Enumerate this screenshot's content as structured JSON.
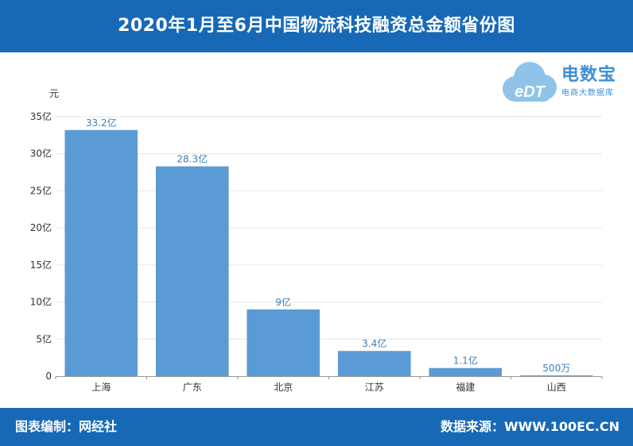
{
  "header": {
    "title": "2020年1月至6月中国物流科技融资总金额省份图"
  },
  "footer": {
    "left": "图表编制：网经社",
    "right": "数据来源：WWW.100EC.CN"
  },
  "logo": {
    "name": "电数宝",
    "subtitle": "电商大数据库",
    "badge": "eDT"
  },
  "colors": {
    "header_bg": "#1769b6",
    "bar": "#5b9bd5",
    "data_label": "#3e7fb8"
  },
  "chart_data": {
    "type": "bar",
    "unit_label": "元",
    "categories": [
      "上海",
      "广东",
      "北京",
      "江苏",
      "福建",
      "山西"
    ],
    "values": [
      3320000000,
      2830000000,
      900000000,
      340000000,
      110000000,
      5000000
    ],
    "data_labels": [
      "33.2亿",
      "28.3亿",
      "9亿",
      "3.4亿",
      "1.1亿",
      "500万"
    ],
    "ylim": [
      0,
      3500000000
    ],
    "yticks": [
      0,
      500000000,
      1000000000,
      1500000000,
      2000000000,
      2500000000,
      3000000000,
      3500000000
    ],
    "ytick_labels": [
      "0",
      "5亿",
      "10亿",
      "15亿",
      "20亿",
      "25亿",
      "30亿",
      "35亿"
    ],
    "grid": true,
    "legend": false
  }
}
